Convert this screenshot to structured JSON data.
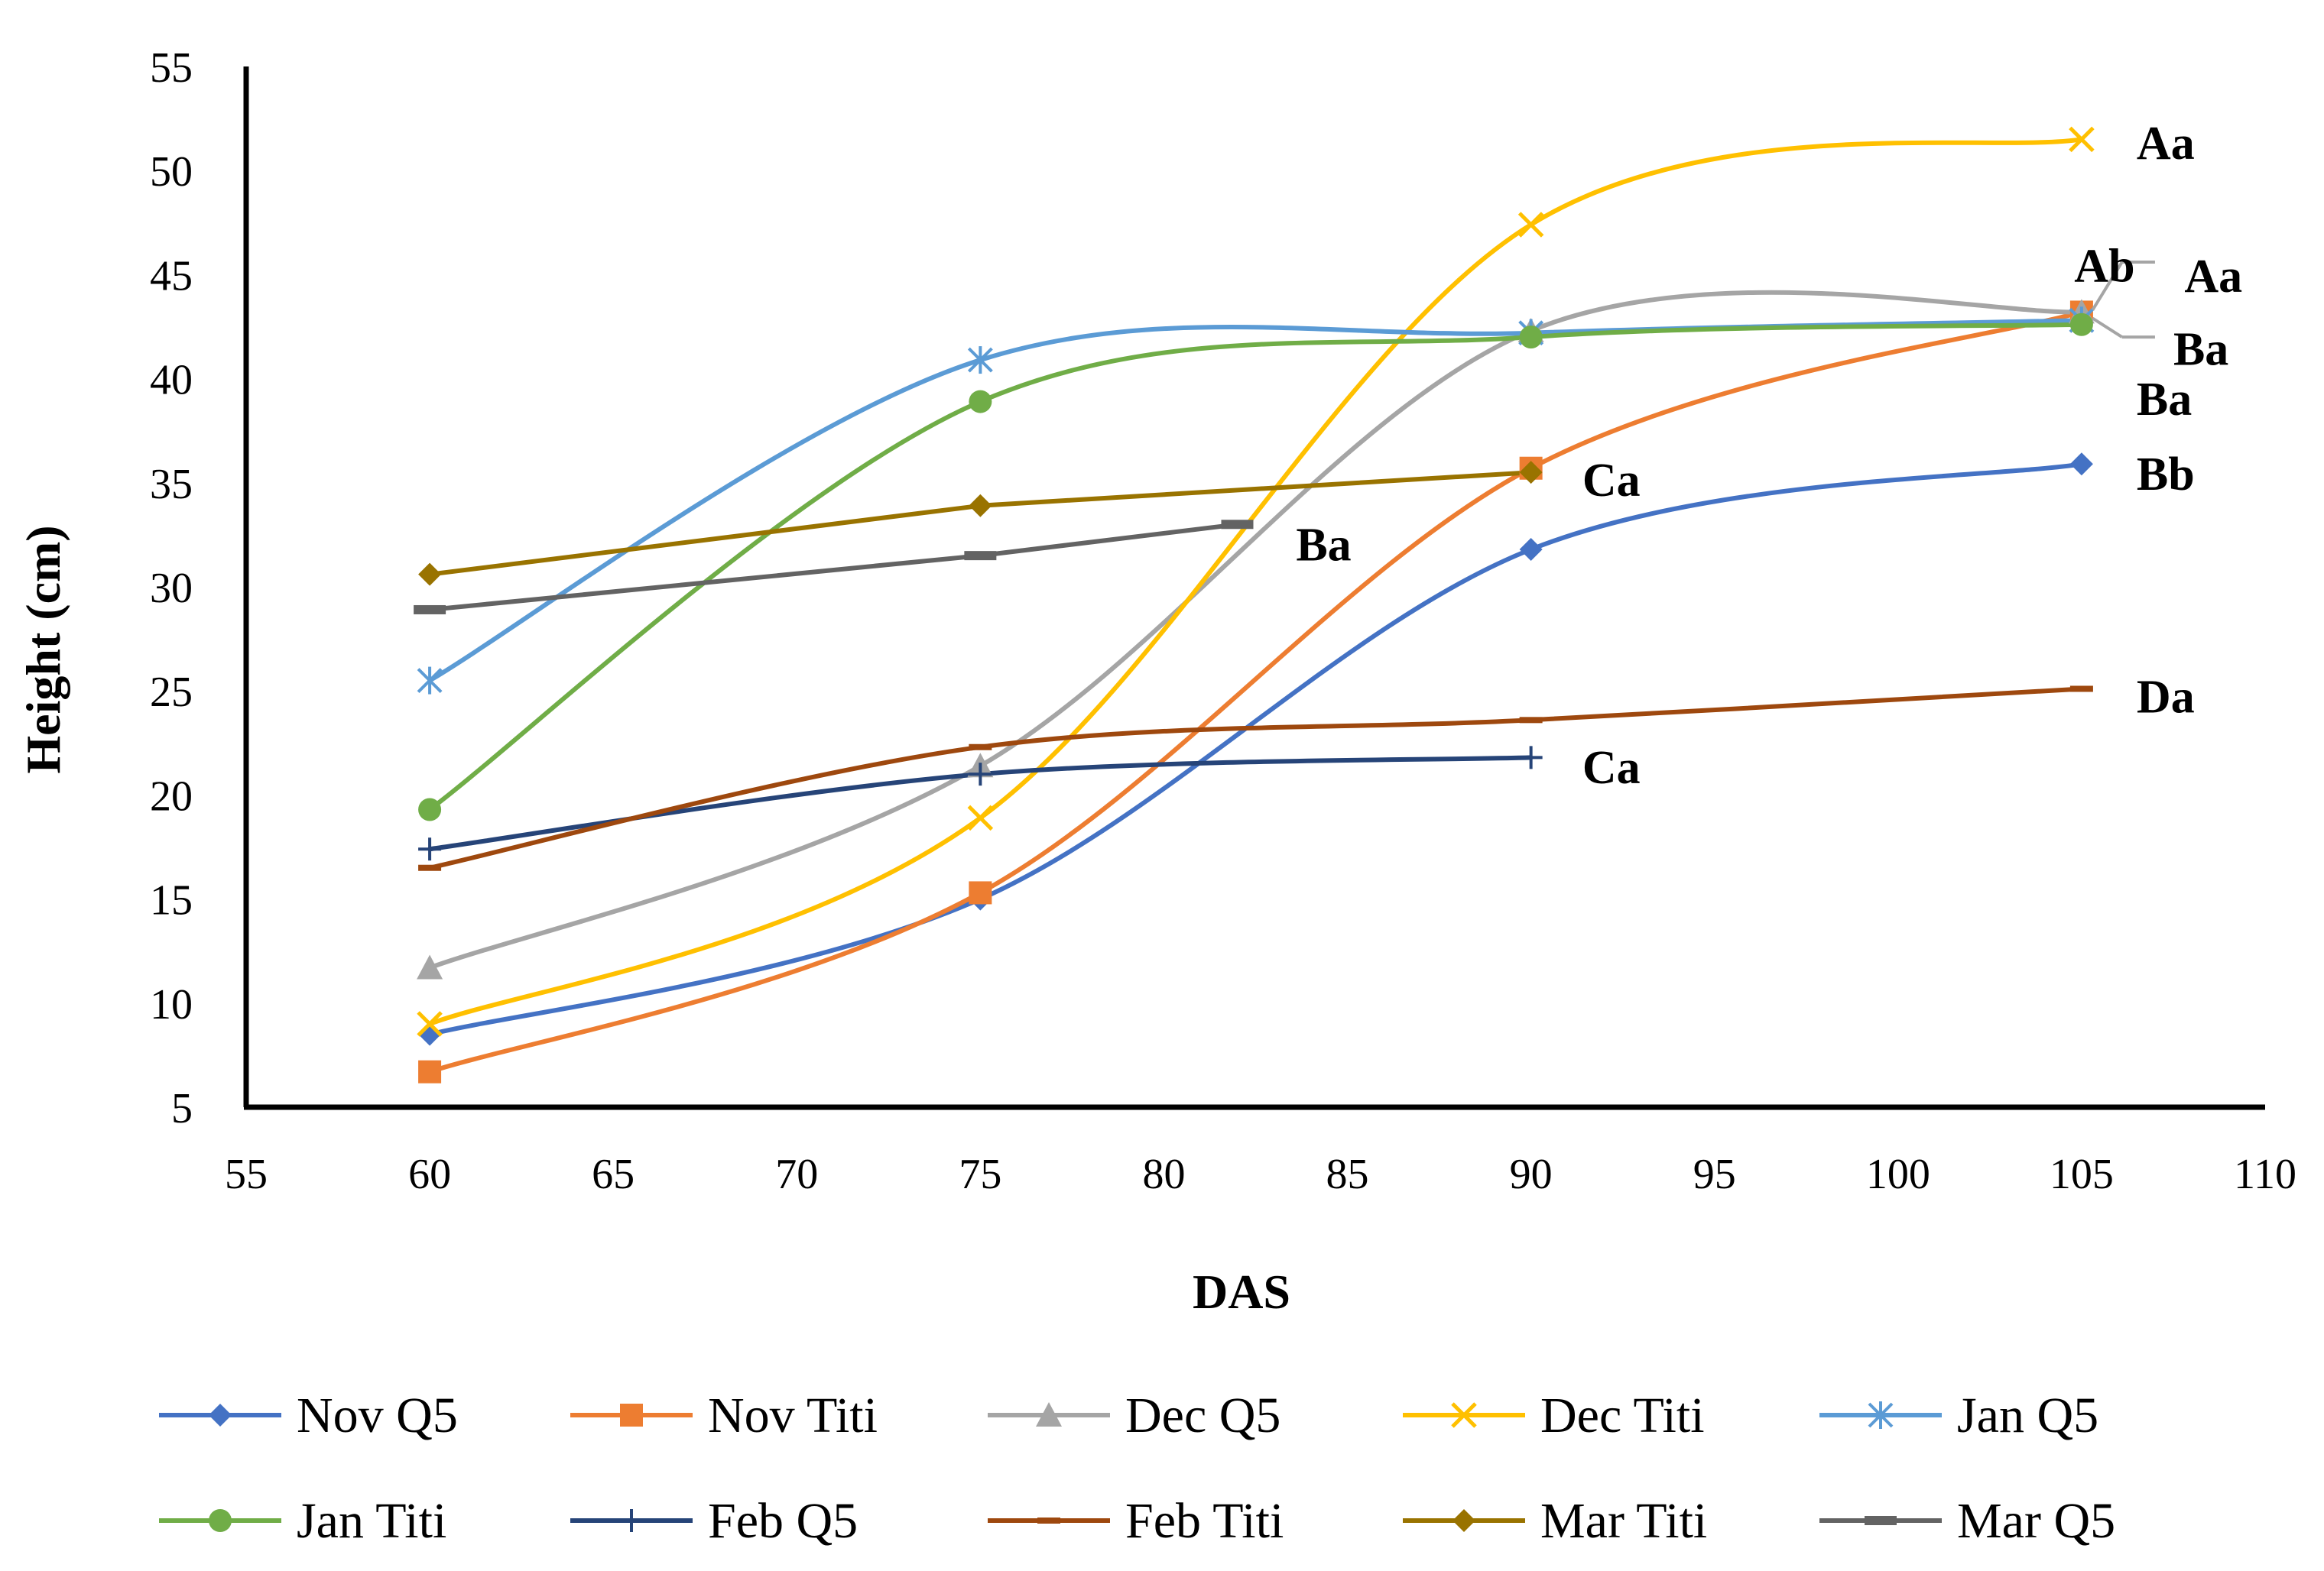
{
  "chart_data": {
    "type": "line",
    "title": "",
    "xlabel": "DAS",
    "ylabel": "Height (cm)",
    "xlim": [
      55,
      110
    ],
    "ylim": [
      5,
      55
    ],
    "x_ticks": [
      55,
      60,
      65,
      70,
      75,
      80,
      85,
      90,
      95,
      100,
      105,
      110
    ],
    "y_ticks": [
      5,
      10,
      15,
      20,
      25,
      30,
      35,
      40,
      45,
      50,
      55
    ],
    "grid": false,
    "legend_position": "bottom",
    "series": [
      {
        "name": "Nov Q5",
        "color": "#4472C4",
        "marker": "diamond",
        "smooth": true,
        "x": [
          60,
          75,
          90,
          105
        ],
        "y": [
          8.5,
          15,
          31.8,
          35.9
        ]
      },
      {
        "name": "Nov Titi",
        "color": "#ED7D31",
        "marker": "square",
        "smooth": true,
        "x": [
          60,
          75,
          90,
          105
        ],
        "y": [
          6.7,
          15.3,
          35.7,
          43.2
        ]
      },
      {
        "name": "Dec Q5",
        "color": "#A5A5A5",
        "marker": "triangle",
        "smooth": true,
        "x": [
          60,
          75,
          90,
          105
        ],
        "y": [
          11.7,
          21.4,
          42.3,
          43.2
        ]
      },
      {
        "name": "Dec Titi",
        "color": "#FFC000",
        "marker": "x",
        "smooth": true,
        "x": [
          60,
          75,
          90,
          105
        ],
        "y": [
          9,
          18.9,
          47.4,
          51.5
        ]
      },
      {
        "name": "Jan Q5",
        "color": "#5B9BD5",
        "marker": "star",
        "smooth": true,
        "x": [
          60,
          75,
          90,
          105
        ],
        "y": [
          25.5,
          40.9,
          42.2,
          42.8
        ]
      },
      {
        "name": "Jan Titi",
        "color": "#70AD47",
        "marker": "circle",
        "smooth": true,
        "x": [
          60,
          75,
          90,
          105
        ],
        "y": [
          19.3,
          38.9,
          42,
          42.6
        ]
      },
      {
        "name": "Feb Q5",
        "color": "#264478",
        "marker": "plus",
        "smooth": true,
        "x": [
          60,
          75,
          90
        ],
        "y": [
          17.4,
          21,
          21.8
        ]
      },
      {
        "name": "Feb Titi",
        "color": "#9E480E",
        "marker": "dash",
        "smooth": true,
        "x": [
          60,
          75,
          90,
          105
        ],
        "y": [
          16.5,
          22.3,
          23.6,
          25.1
        ]
      },
      {
        "name": "Mar Titi",
        "color": "#997300",
        "marker": "diamond",
        "smooth": false,
        "x": [
          60,
          75,
          90
        ],
        "y": [
          30.6,
          33.9,
          35.5
        ]
      },
      {
        "name": "Mar Q5",
        "color": "#636363",
        "marker": "bar",
        "smooth": false,
        "x": [
          60,
          75,
          82
        ],
        "y": [
          28.9,
          31.5,
          33
        ]
      }
    ],
    "annotations": [
      {
        "text": "Aa",
        "x": 106.5,
        "y": 51.3
      },
      {
        "text": "Ab",
        "x": 104.8,
        "y": 45.4
      },
      {
        "text": "Aa",
        "x": 107.8,
        "y": 44.9
      },
      {
        "text": "Ba",
        "x": 107.5,
        "y": 41.4
      },
      {
        "text": "Ba",
        "x": 106.5,
        "y": 39.0
      },
      {
        "text": "Bb",
        "x": 106.5,
        "y": 35.4
      },
      {
        "text": "Ca",
        "x": 91.4,
        "y": 35.1
      },
      {
        "text": "Ba",
        "x": 83.6,
        "y": 32.0
      },
      {
        "text": "Da",
        "x": 106.5,
        "y": 24.7
      },
      {
        "text": "Ca",
        "x": 91.4,
        "y": 21.3
      }
    ],
    "leader_lines": [
      {
        "from": [
          105.3,
          43.3
        ],
        "to": [
          106.1,
          45.6
        ]
      },
      {
        "from": [
          106.1,
          45.6
        ],
        "to": [
          107.0,
          45.6
        ]
      },
      {
        "from": [
          105.3,
          42.9
        ],
        "to": [
          106.1,
          42.0
        ]
      },
      {
        "from": [
          106.1,
          42.0
        ],
        "to": [
          107.0,
          42.0
        ]
      }
    ]
  }
}
